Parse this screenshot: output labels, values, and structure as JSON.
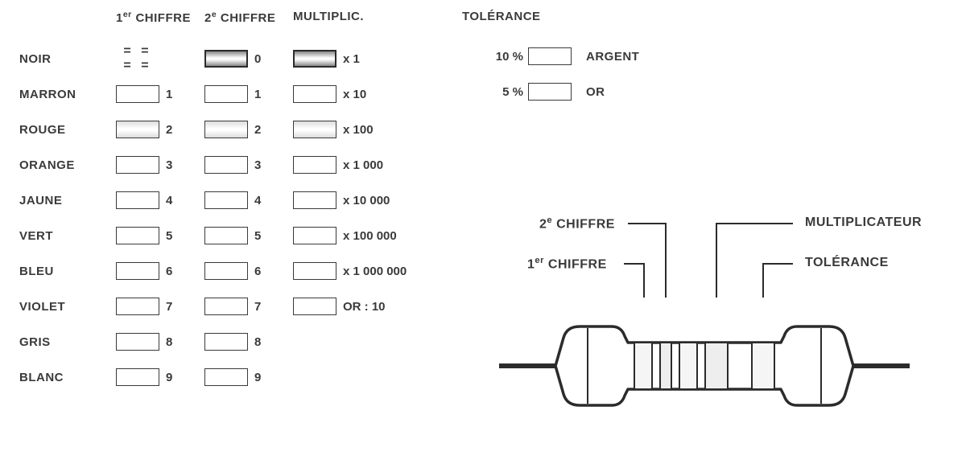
{
  "headers": {
    "col1": "1er CHIFFRE",
    "col2": "2e CHIFFRE",
    "col3": "MULTIPLIC.",
    "col4": "TOLÉRANCE"
  },
  "colors": [
    {
      "name": "NOIR",
      "d1": null,
      "d1_dashes": "= = = =",
      "d2": "0",
      "mult": "x 1",
      "d2_style": "dark",
      "mult_style": "dark"
    },
    {
      "name": "MARRON",
      "d1": "1",
      "d2": "1",
      "mult": "x 10",
      "d1_style": "plain",
      "d2_style": "plain",
      "mult_style": "plain"
    },
    {
      "name": "ROUGE",
      "d1": "2",
      "d2": "2",
      "mult": "x 100",
      "d1_style": "mid",
      "d2_style": "mid",
      "mult_style": "mid"
    },
    {
      "name": "ORANGE",
      "d1": "3",
      "d2": "3",
      "mult": "x 1 000",
      "d1_style": "plain",
      "d2_style": "plain",
      "mult_style": "plain"
    },
    {
      "name": "JAUNE",
      "d1": "4",
      "d2": "4",
      "mult": "x 10 000",
      "d1_style": "plain",
      "d2_style": "plain",
      "mult_style": "plain"
    },
    {
      "name": "VERT",
      "d1": "5",
      "d2": "5",
      "mult": "x 100 000",
      "d1_style": "plain",
      "d2_style": "plain",
      "mult_style": "plain"
    },
    {
      "name": "BLEU",
      "d1": "6",
      "d2": "6",
      "mult": "x 1 000 000",
      "d1_style": "plain",
      "d2_style": "plain",
      "mult_style": "plain"
    },
    {
      "name": "VIOLET",
      "d1": "7",
      "d2": "7",
      "mult": "OR : 10",
      "d1_style": "plain",
      "d2_style": "plain",
      "mult_style": "plain"
    },
    {
      "name": "GRIS",
      "d1": "8",
      "d2": "8",
      "mult": null,
      "d1_style": "plain",
      "d2_style": "plain"
    },
    {
      "name": "BLANC",
      "d1": "9",
      "d2": "9",
      "mult": null,
      "d1_style": "plain",
      "d2_style": "plain"
    }
  ],
  "tolerance": [
    {
      "pct": "10 %",
      "name": "ARGENT",
      "style": "plain"
    },
    {
      "pct": "5 %",
      "name": "OR",
      "style": "plain"
    }
  ],
  "diagram": {
    "label_d2": "2e CHIFFRE",
    "label_d1": "1er CHIFFRE",
    "label_mult": "MULTIPLICATEUR",
    "label_tol": "TOLÉRANCE",
    "stroke": "#2b2b2b",
    "stroke_width": 4,
    "body_fill": "#ffffff"
  }
}
